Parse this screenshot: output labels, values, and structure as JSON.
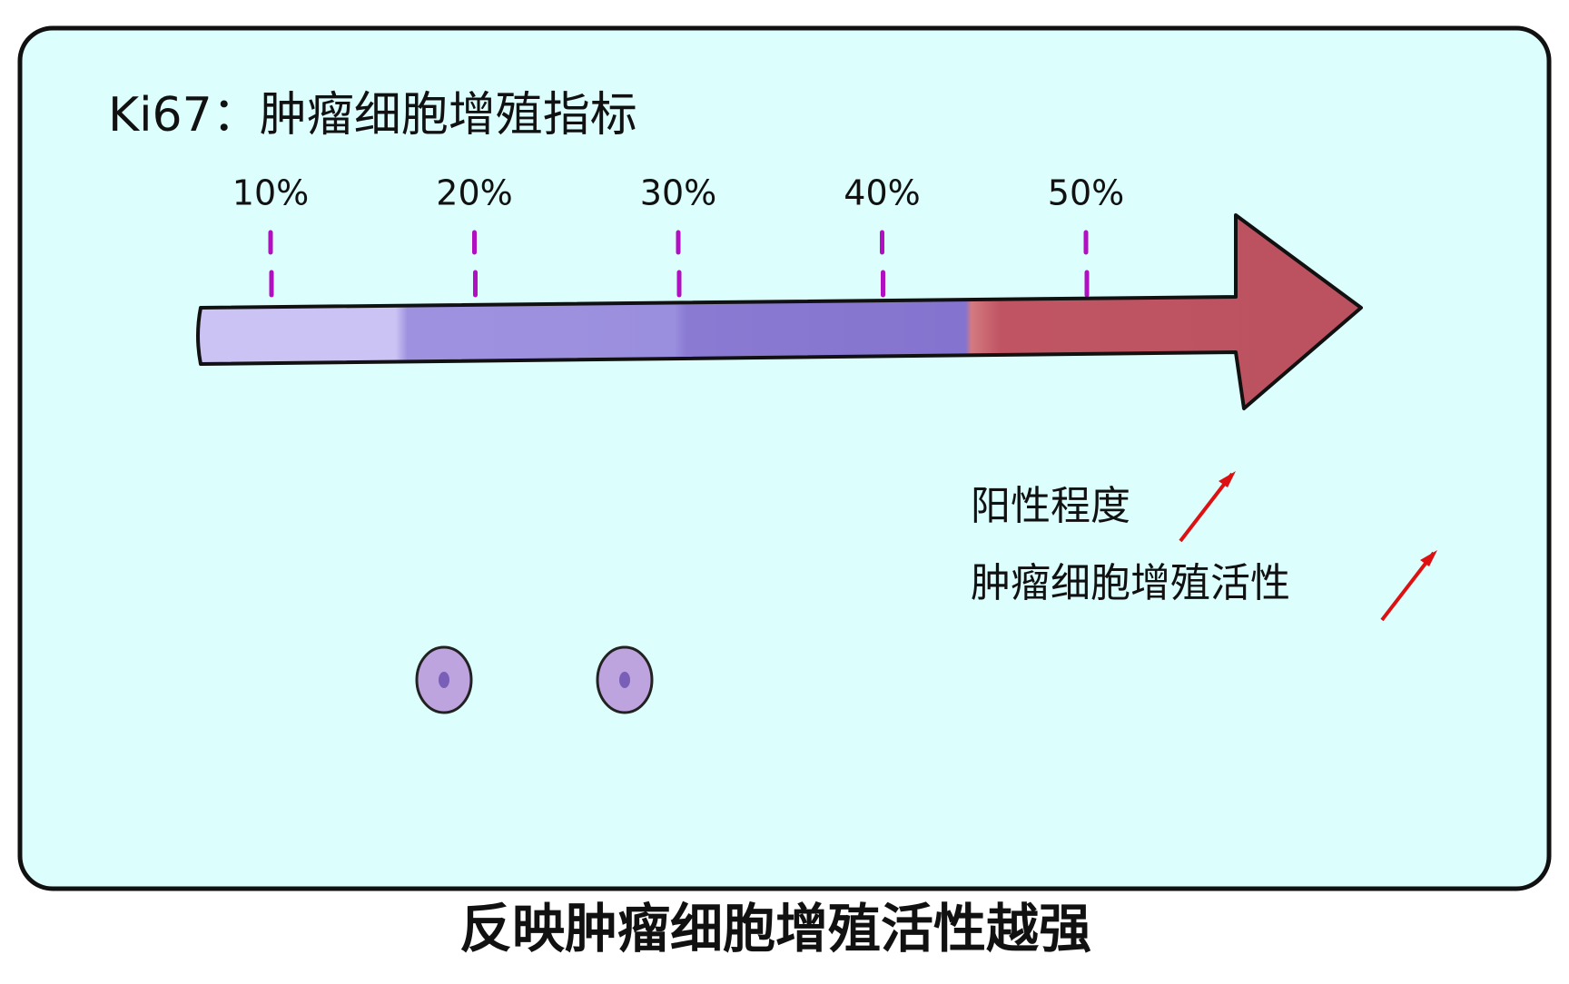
{
  "title": "Ki67：肿瘤细胞增殖指标",
  "scale_labels": [
    "10%",
    "20%",
    "30%",
    "40%",
    "50%"
  ],
  "notes": [
    "阳性程度",
    "肿瘤细胞增殖活性"
  ],
  "caption": "反映肿瘤细胞增殖活性越强"
}
